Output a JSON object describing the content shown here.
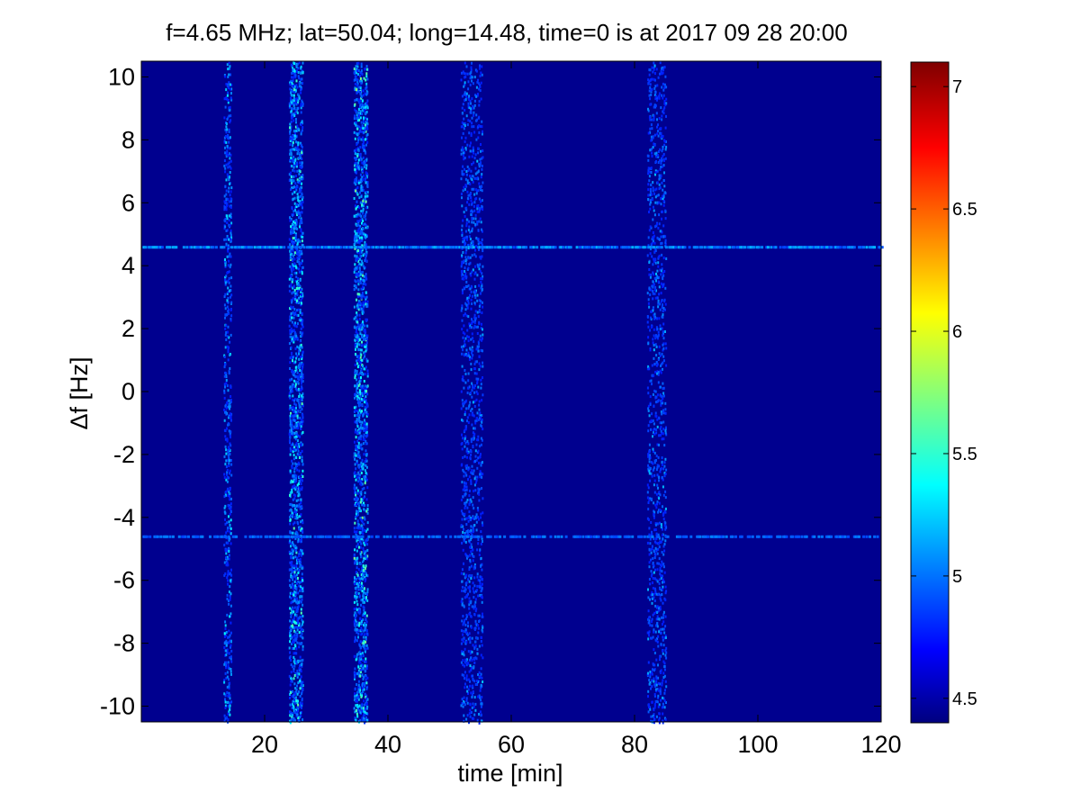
{
  "chart_data": {
    "type": "heatmap",
    "title": "f=4.65 MHz;  lat=50.04; long=14.48, time=0 is at 2017 09 28 20:00",
    "xlabel": "time [min]",
    "ylabel": "Δf [Hz]",
    "xlim": [
      0,
      120
    ],
    "ylim": [
      -10.5,
      10.5
    ],
    "x_ticks": [
      20,
      40,
      60,
      80,
      100,
      120
    ],
    "y_ticks": [
      -10,
      -8,
      -6,
      -4,
      -2,
      0,
      2,
      4,
      6,
      8,
      10
    ],
    "colorbar": {
      "colormap": "jet",
      "range": [
        4.4,
        7.1
      ],
      "ticks": [
        4.5,
        5,
        5.5,
        6,
        6.5,
        7
      ]
    },
    "background_value": 4.45,
    "vertical_bands": [
      {
        "time": 13.9,
        "width_min": 1.2,
        "intensity": 0.55
      },
      {
        "time": 25.0,
        "width_min": 2.2,
        "intensity": 0.8
      },
      {
        "time": 35.5,
        "width_min": 2.2,
        "intensity": 0.85
      },
      {
        "time": 53.5,
        "width_min": 3.5,
        "intensity": 0.4
      },
      {
        "time": 83.5,
        "width_min": 3.0,
        "intensity": 0.4
      }
    ],
    "horizontal_lines": [
      {
        "df": 4.6,
        "intensity": 0.45
      },
      {
        "df": -4.6,
        "intensity": 0.25
      }
    ]
  }
}
